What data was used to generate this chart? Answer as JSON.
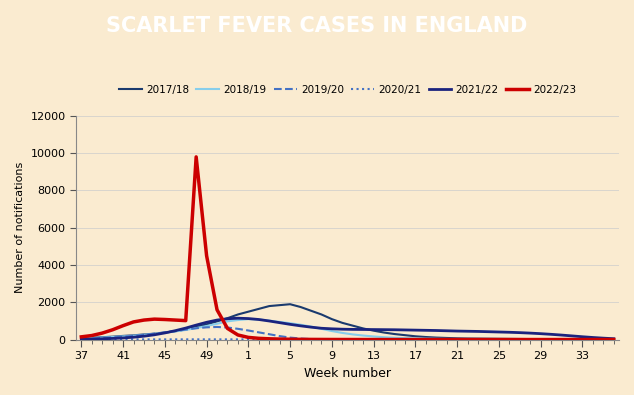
{
  "title": "SCARLET FEVER CASES IN ENGLAND",
  "title_bg": "#cc0000",
  "title_color": "#ffffff",
  "ylabel": "Number of notifications",
  "xlabel": "Week number",
  "background_color": "#faebd0",
  "ylim": [
    0,
    12000
  ],
  "yticks": [
    0,
    2000,
    4000,
    6000,
    8000,
    10000,
    12000
  ],
  "xtick_labels": [
    "37",
    "41",
    "45",
    "49",
    "1",
    "5",
    "9",
    "13",
    "17",
    "21",
    "25",
    "29",
    "33"
  ],
  "xtick_positions": [
    0,
    4,
    8,
    12,
    16,
    20,
    24,
    28,
    32,
    36,
    40,
    44,
    48
  ],
  "n_weeks": 52,
  "series": {
    "2017/18": {
      "color": "#1a3a6e",
      "linestyle": "solid",
      "linewidth": 1.5,
      "data": [
        80,
        100,
        130,
        160,
        200,
        230,
        280,
        320,
        380,
        450,
        550,
        680,
        820,
        980,
        1150,
        1350,
        1500,
        1650,
        1800,
        1850,
        1900,
        1750,
        1550,
        1350,
        1100,
        900,
        750,
        600,
        480,
        380,
        300,
        240,
        180,
        140,
        110,
        90,
        70,
        60,
        55,
        50,
        45,
        40,
        35,
        30,
        25,
        22,
        18,
        15,
        12,
        10,
        8,
        5
      ]
    },
    "2018/19": {
      "color": "#87ceeb",
      "linestyle": "solid",
      "linewidth": 1.5,
      "data": [
        60,
        80,
        110,
        140,
        175,
        210,
        260,
        310,
        370,
        440,
        520,
        620,
        730,
        850,
        980,
        1050,
        1100,
        1080,
        1020,
        950,
        880,
        800,
        700,
        580,
        460,
        360,
        280,
        220,
        170,
        130,
        100,
        80,
        65,
        55,
        45,
        38,
        32,
        27,
        23,
        20,
        17,
        14,
        12,
        10,
        9,
        8,
        7,
        6,
        5,
        5,
        4,
        3
      ]
    },
    "2019/20": {
      "color": "#4472c4",
      "linestyle": "dashed",
      "linewidth": 1.5,
      "data": [
        40,
        60,
        90,
        120,
        160,
        200,
        255,
        320,
        390,
        460,
        540,
        610,
        660,
        680,
        650,
        580,
        490,
        390,
        290,
        190,
        110,
        60,
        30,
        15,
        8,
        5,
        3,
        2,
        2,
        2,
        2,
        2,
        2,
        2,
        2,
        2,
        2,
        2,
        2,
        2,
        2,
        2,
        2,
        2,
        2,
        2,
        2,
        2,
        2,
        2,
        2,
        2
      ]
    },
    "2020/21": {
      "color": "#4472c4",
      "linestyle": "dotted",
      "linewidth": 1.5,
      "data": [
        8,
        9,
        10,
        11,
        12,
        13,
        13,
        14,
        14,
        15,
        15,
        16,
        16,
        15,
        15,
        14,
        14,
        13,
        12,
        11,
        10,
        9,
        8,
        8,
        7,
        7,
        6,
        6,
        5,
        5,
        5,
        5,
        5,
        5,
        5,
        4,
        4,
        4,
        4,
        4,
        3,
        3,
        3,
        3,
        3,
        3,
        3,
        3,
        3,
        3,
        3,
        3
      ]
    },
    "2021/22": {
      "color": "#1a237e",
      "linestyle": "solid",
      "linewidth": 2.0,
      "data": [
        20,
        30,
        45,
        65,
        90,
        130,
        185,
        260,
        360,
        480,
        620,
        780,
        930,
        1050,
        1120,
        1150,
        1130,
        1080,
        1000,
        910,
        820,
        740,
        670,
        610,
        580,
        560,
        550,
        545,
        540,
        535,
        530,
        520,
        510,
        500,
        490,
        475,
        460,
        450,
        440,
        425,
        410,
        395,
        375,
        350,
        320,
        285,
        245,
        200,
        155,
        115,
        80,
        50
      ]
    },
    "2022/23": {
      "color": "#cc0000",
      "linestyle": "solid",
      "linewidth": 2.5,
      "data": [
        150,
        220,
        350,
        530,
        750,
        950,
        1050,
        1100,
        1080,
        1050,
        1020,
        9800,
        4500,
        1600,
        600,
        250,
        120,
        70,
        45,
        30,
        20,
        15,
        12,
        10,
        8,
        7,
        6,
        5,
        5,
        5,
        5,
        5,
        5,
        5,
        5,
        5,
        5,
        5,
        5,
        5,
        5,
        5,
        5,
        5,
        5,
        5,
        5,
        5,
        5,
        5,
        5,
        5
      ]
    }
  },
  "legend_order": [
    "2017/18",
    "2018/19",
    "2019/20",
    "2020/21",
    "2021/22",
    "2022/23"
  ]
}
